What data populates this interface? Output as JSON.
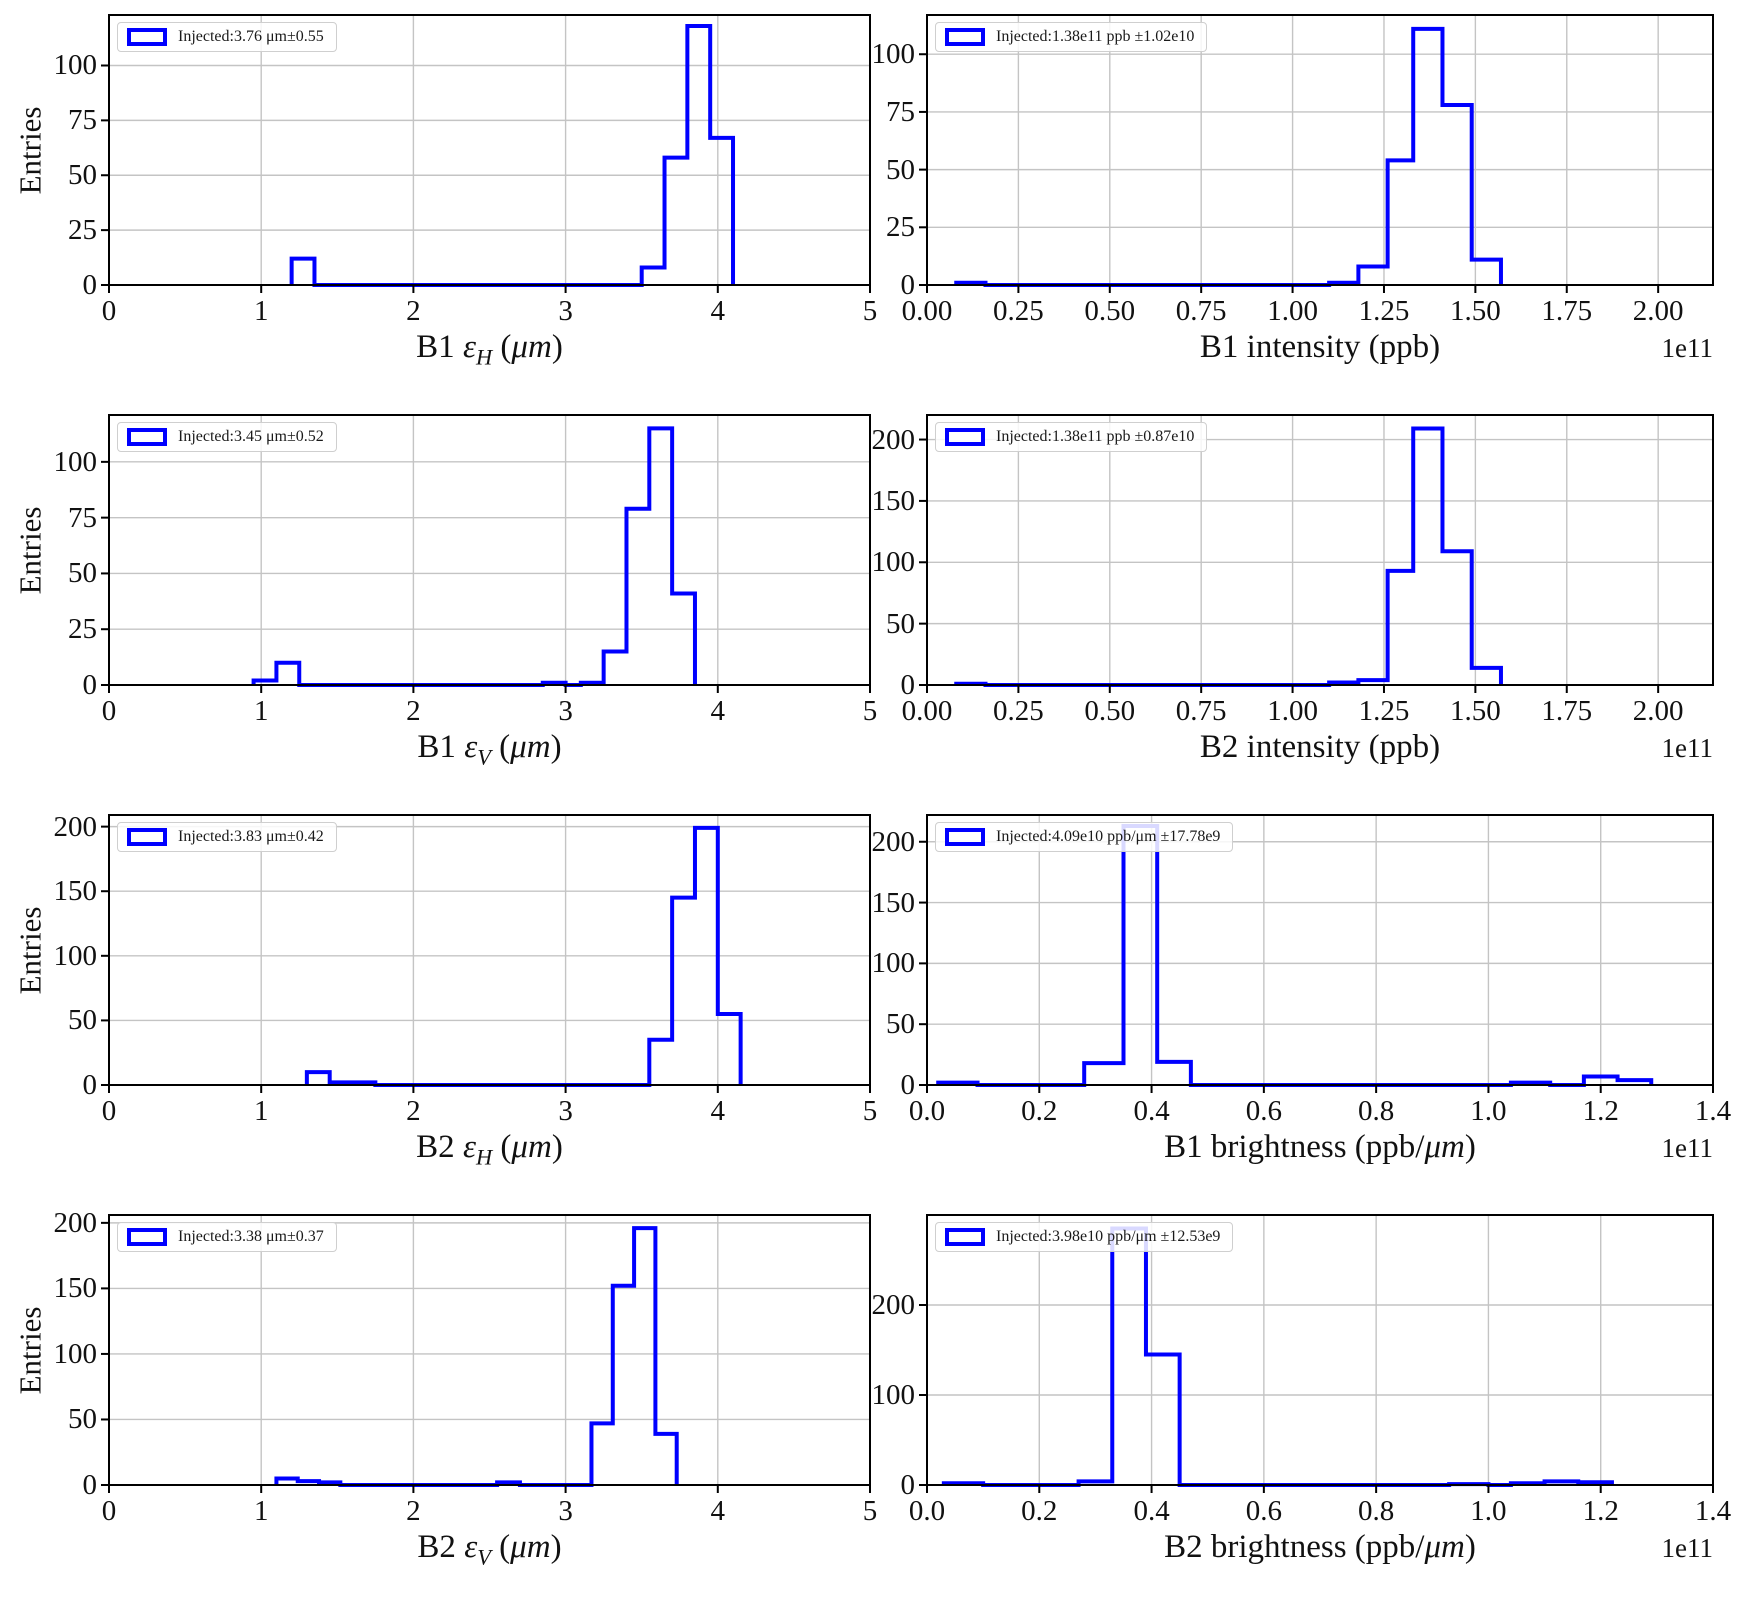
{
  "figure": {
    "background": "#ffffff",
    "line_color": "#0000ff",
    "grid_color": "#c4c4c4",
    "spine_color": "#000000",
    "ylabel_left_column": "Entries"
  },
  "chart_data": [
    {
      "type": "bar",
      "style": "step-histogram",
      "xlabel_text": "B1 εH (μm)",
      "xlabel_parts": [
        {
          "t": "B1 ",
          "s": "plain"
        },
        {
          "t": "ε",
          "s": "italic"
        },
        {
          "t": "H",
          "s": "italic-sub"
        },
        {
          "t": " (",
          "s": "plain"
        },
        {
          "t": "μm",
          "s": "italic"
        },
        {
          "t": ")",
          "s": "plain"
        }
      ],
      "ylabel": "Entries",
      "legend": "Injected:3.76 μm±0.55",
      "xlim": [
        0,
        5
      ],
      "ylim": [
        0,
        123
      ],
      "xtick_values": [
        0,
        1,
        2,
        3,
        4,
        5
      ],
      "xtick_labels": [
        "0",
        "1",
        "2",
        "3",
        "4",
        "5"
      ],
      "ytick_values": [
        0,
        25,
        50,
        75,
        100
      ],
      "ytick_labels": [
        "0",
        "25",
        "50",
        "75",
        "100"
      ],
      "x_offset_label": "",
      "bin_edges": [
        1.2,
        1.35,
        3.5,
        3.65,
        3.8,
        3.95,
        4.1
      ],
      "counts": [
        12,
        0,
        8,
        58,
        118,
        67
      ]
    },
    {
      "type": "bar",
      "style": "step-histogram",
      "xlabel_text": "B1 intensity (ppb)",
      "xlabel_parts": [
        {
          "t": "B1 intensity (ppb)",
          "s": "plain"
        }
      ],
      "ylabel": "",
      "legend": "Injected:1.38e11 ppb ±1.02e10",
      "xlim": [
        0,
        2.15
      ],
      "ylim": [
        0,
        117
      ],
      "xtick_values": [
        0,
        0.25,
        0.5,
        0.75,
        1.0,
        1.25,
        1.5,
        1.75,
        2.0
      ],
      "xtick_labels": [
        "0.00",
        "0.25",
        "0.50",
        "0.75",
        "1.00",
        "1.25",
        "1.50",
        "1.75",
        "2.00"
      ],
      "ytick_values": [
        0,
        25,
        50,
        75,
        100
      ],
      "ytick_labels": [
        "0",
        "25",
        "50",
        "75",
        "100"
      ],
      "x_offset_label": "1e11",
      "bin_edges": [
        0.08,
        0.16,
        1.1,
        1.18,
        1.26,
        1.33,
        1.41,
        1.49,
        1.57
      ],
      "counts": [
        1,
        0,
        1,
        8,
        54,
        111,
        78,
        11
      ]
    },
    {
      "type": "bar",
      "style": "step-histogram",
      "xlabel_text": "B1 εV (μm)",
      "xlabel_parts": [
        {
          "t": "B1 ",
          "s": "plain"
        },
        {
          "t": "ε",
          "s": "italic"
        },
        {
          "t": "V",
          "s": "italic-sub"
        },
        {
          "t": " (",
          "s": "plain"
        },
        {
          "t": "μm",
          "s": "italic"
        },
        {
          "t": ")",
          "s": "plain"
        }
      ],
      "ylabel": "Entries",
      "legend": "Injected:3.45 μm±0.52",
      "xlim": [
        0,
        5
      ],
      "ylim": [
        0,
        121
      ],
      "xtick_values": [
        0,
        1,
        2,
        3,
        4,
        5
      ],
      "xtick_labels": [
        "0",
        "1",
        "2",
        "3",
        "4",
        "5"
      ],
      "ytick_values": [
        0,
        25,
        50,
        75,
        100
      ],
      "ytick_labels": [
        "0",
        "25",
        "50",
        "75",
        "100"
      ],
      "x_offset_label": "",
      "bin_edges": [
        0.95,
        1.1,
        1.25,
        2.85,
        3.0,
        3.1,
        3.25,
        3.4,
        3.55,
        3.7,
        3.85
      ],
      "counts": [
        2,
        10,
        0,
        1,
        0,
        1,
        15,
        79,
        115,
        41
      ]
    },
    {
      "type": "bar",
      "style": "step-histogram",
      "xlabel_text": "B2 intensity (ppb)",
      "xlabel_parts": [
        {
          "t": "B2 intensity (ppb)",
          "s": "plain"
        }
      ],
      "ylabel": "",
      "legend": "Injected:1.38e11 ppb ±0.87e10",
      "xlim": [
        0,
        2.15
      ],
      "ylim": [
        0,
        220
      ],
      "xtick_values": [
        0,
        0.25,
        0.5,
        0.75,
        1.0,
        1.25,
        1.5,
        1.75,
        2.0
      ],
      "xtick_labels": [
        "0.00",
        "0.25",
        "0.50",
        "0.75",
        "1.00",
        "1.25",
        "1.50",
        "1.75",
        "2.00"
      ],
      "ytick_values": [
        0,
        50,
        100,
        150,
        200
      ],
      "ytick_labels": [
        "0",
        "50",
        "100",
        "150",
        "200"
      ],
      "x_offset_label": "1e11",
      "bin_edges": [
        0.08,
        0.16,
        1.1,
        1.18,
        1.26,
        1.33,
        1.41,
        1.49,
        1.57
      ],
      "counts": [
        1,
        0,
        2,
        4,
        93,
        209,
        109,
        14
      ]
    },
    {
      "type": "bar",
      "style": "step-histogram",
      "xlabel_text": "B2 εH (μm)",
      "xlabel_parts": [
        {
          "t": "B2 ",
          "s": "plain"
        },
        {
          "t": "ε",
          "s": "italic"
        },
        {
          "t": "H",
          "s": "italic-sub"
        },
        {
          "t": " (",
          "s": "plain"
        },
        {
          "t": "μm",
          "s": "italic"
        },
        {
          "t": ")",
          "s": "plain"
        }
      ],
      "ylabel": "Entries",
      "legend": "Injected:3.83 μm±0.42",
      "xlim": [
        0,
        5
      ],
      "ylim": [
        0,
        209
      ],
      "xtick_values": [
        0,
        1,
        2,
        3,
        4,
        5
      ],
      "xtick_labels": [
        "0",
        "1",
        "2",
        "3",
        "4",
        "5"
      ],
      "ytick_values": [
        0,
        50,
        100,
        150,
        200
      ],
      "ytick_labels": [
        "0",
        "50",
        "100",
        "150",
        "200"
      ],
      "x_offset_label": "",
      "bin_edges": [
        1.3,
        1.45,
        1.6,
        1.75,
        3.55,
        3.7,
        3.85,
        4.0,
        4.15
      ],
      "counts": [
        10,
        2,
        2,
        0,
        35,
        145,
        199,
        55
      ]
    },
    {
      "type": "bar",
      "style": "step-histogram",
      "xlabel_text": "B1 brightness (ppb/μm)",
      "xlabel_parts": [
        {
          "t": "B1 brightness (ppb/",
          "s": "plain"
        },
        {
          "t": "μm",
          "s": "italic"
        },
        {
          "t": ")",
          "s": "plain"
        }
      ],
      "ylabel": "",
      "legend": "Injected:4.09e10 ppb/μm ±17.78e9",
      "xlim": [
        0,
        1.4
      ],
      "ylim": [
        0,
        222
      ],
      "xtick_values": [
        0,
        0.2,
        0.4,
        0.6,
        0.8,
        1.0,
        1.2,
        1.4
      ],
      "xtick_labels": [
        "0.0",
        "0.2",
        "0.4",
        "0.6",
        "0.8",
        "1.0",
        "1.2",
        "1.4"
      ],
      "ytick_values": [
        0,
        50,
        100,
        150,
        200
      ],
      "ytick_labels": [
        "0",
        "50",
        "100",
        "150",
        "200"
      ],
      "x_offset_label": "1e11",
      "bin_edges": [
        0.02,
        0.09,
        0.28,
        0.35,
        0.41,
        0.47,
        1.04,
        1.11,
        1.17,
        1.23,
        1.29
      ],
      "counts": [
        2,
        0,
        18,
        213,
        19,
        0,
        2,
        0,
        7,
        4
      ]
    },
    {
      "type": "bar",
      "style": "step-histogram",
      "xlabel_text": "B2 εV (μm)",
      "xlabel_parts": [
        {
          "t": "B2 ",
          "s": "plain"
        },
        {
          "t": "ε",
          "s": "italic"
        },
        {
          "t": "V",
          "s": "italic-sub"
        },
        {
          "t": " (",
          "s": "plain"
        },
        {
          "t": "μm",
          "s": "italic"
        },
        {
          "t": ")",
          "s": "plain"
        }
      ],
      "ylabel": "Entries",
      "legend": "Injected:3.38 μm±0.37",
      "xlim": [
        0,
        5
      ],
      "ylim": [
        0,
        206
      ],
      "xtick_values": [
        0,
        1,
        2,
        3,
        4,
        5
      ],
      "xtick_labels": [
        "0",
        "1",
        "2",
        "3",
        "4",
        "5"
      ],
      "ytick_values": [
        0,
        50,
        100,
        150,
        200
      ],
      "ytick_labels": [
        "0",
        "50",
        "100",
        "150",
        "200"
      ],
      "x_offset_label": "",
      "bin_edges": [
        1.1,
        1.24,
        1.38,
        1.52,
        2.55,
        2.7,
        3.17,
        3.31,
        3.45,
        3.59,
        3.73
      ],
      "counts": [
        5,
        3,
        2,
        0,
        2,
        0,
        47,
        152,
        196,
        39
      ]
    },
    {
      "type": "bar",
      "style": "step-histogram",
      "xlabel_text": "B2 brightness (ppb/μm)",
      "xlabel_parts": [
        {
          "t": "B2 brightness (ppb/",
          "s": "plain"
        },
        {
          "t": "μm",
          "s": "italic"
        },
        {
          "t": ")",
          "s": "plain"
        }
      ],
      "ylabel": "",
      "legend": "Injected:3.98e10 ppb/μm ±12.53e9",
      "xlim": [
        0,
        1.4
      ],
      "ylim": [
        0,
        300
      ],
      "xtick_values": [
        0,
        0.2,
        0.4,
        0.6,
        0.8,
        1.0,
        1.2,
        1.4
      ],
      "xtick_labels": [
        "0.0",
        "0.2",
        "0.4",
        "0.6",
        "0.8",
        "1.0",
        "1.2",
        "1.4"
      ],
      "ytick_values": [
        0,
        100,
        200
      ],
      "ytick_labels": [
        "0",
        "100",
        "200"
      ],
      "x_offset_label": "1e11",
      "bin_edges": [
        0.03,
        0.1,
        0.27,
        0.33,
        0.39,
        0.45,
        0.93,
        1.0,
        1.04,
        1.1,
        1.16,
        1.22
      ],
      "counts": [
        2,
        0,
        4,
        285,
        145,
        0,
        1,
        0,
        2,
        4,
        3
      ]
    }
  ]
}
